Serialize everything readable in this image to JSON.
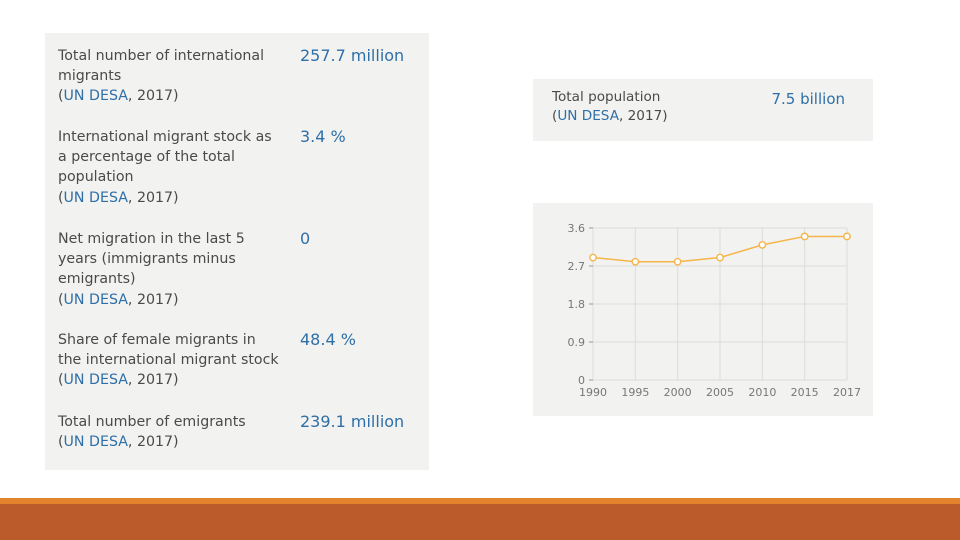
{
  "colors": {
    "accent": "#2e6fa8",
    "panel_bg": "#f2f2f0",
    "chart_line": "#f5b54a",
    "footer_line": "#e3832c",
    "footer_bar": "#bb5a2a"
  },
  "stats": [
    {
      "label_lines": [
        "Total number of international",
        "migrants"
      ],
      "source_name": "UN DESA",
      "source_year": ", 2017)",
      "value": "257.7 million"
    },
    {
      "label_lines": [
        "International migrant stock as",
        "a percentage of the total",
        "population"
      ],
      "source_name": "UN DESA",
      "source_year": ", 2017)",
      "value": "3.4 %"
    },
    {
      "label_lines": [
        "Net migration in the last 5",
        "years (immigrants minus",
        "emigrants)"
      ],
      "source_name": "UN DESA",
      "source_year": ", 2017)",
      "value": "0"
    },
    {
      "label_lines": [
        "Share of female migrants in",
        "the international migrant stock"
      ],
      "source_name": "UN DESA",
      "source_year": ", 2017)",
      "value": "48.4 %"
    },
    {
      "label_lines": [
        "Total number of emigrants"
      ],
      "source_name": "UN DESA",
      "source_year": ", 2017)",
      "value": "239.1 million"
    }
  ],
  "population": {
    "label": "Total population",
    "source_name": "UN DESA",
    "source_year": ", 2017)",
    "value": "7.5 billion"
  },
  "chart_data": {
    "type": "line",
    "title": "",
    "xlabel": "",
    "ylabel": "",
    "categories": [
      "1990",
      "1995",
      "2000",
      "2005",
      "2010",
      "2015",
      "2017"
    ],
    "values": [
      2.9,
      2.8,
      2.8,
      2.9,
      3.2,
      3.4,
      3.4
    ],
    "yticks": [
      "3.6",
      "2.7",
      "1.8",
      "0.9",
      "0"
    ],
    "ylim": [
      0,
      3.6
    ],
    "grid": true
  }
}
